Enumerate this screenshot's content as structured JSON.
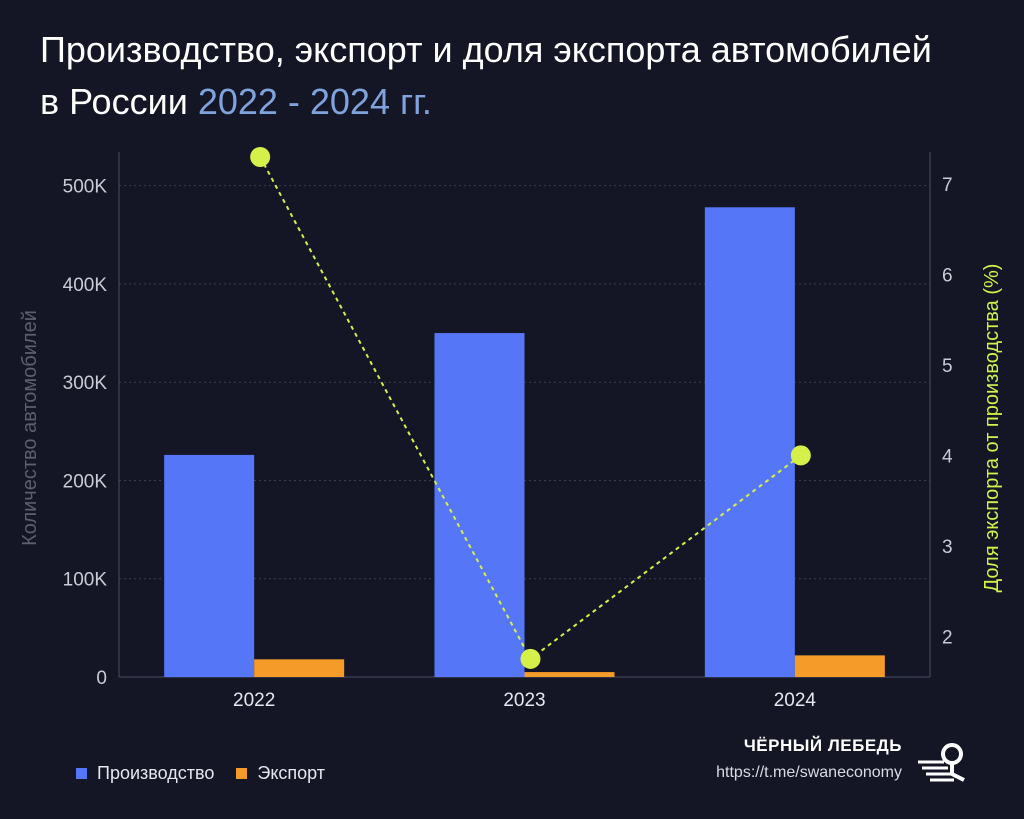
{
  "title": {
    "line1": "Производство, экспорт и доля экспорта автомобилей",
    "line2_prefix": "в России ",
    "line2_accent": "2022 - 2024 гг."
  },
  "legend": {
    "production": "Производство",
    "export": "Экспорт"
  },
  "brand": {
    "name": "ЧЁРНЫЙ ЛЕБЕДЬ",
    "url": "https://t.me/swaneconomy",
    "logo_icon": "swan-logo-icon"
  },
  "colors": {
    "production": "#5576f6",
    "export": "#f59b2a",
    "share": "#d6f04a",
    "accent": "#7fa3dc",
    "axis_label_left": "#5b5f70",
    "axis_label_right": "#d6f04a"
  },
  "chart_data": {
    "type": "bar",
    "categories": [
      "2022",
      "2023",
      "2024"
    ],
    "series": [
      {
        "name": "Производство",
        "values": [
          226000,
          350000,
          478000
        ],
        "axis": "left"
      },
      {
        "name": "Экспорт",
        "values": [
          18000,
          5000,
          22000
        ],
        "axis": "left"
      },
      {
        "name": "",
        "type": "line",
        "values": [
          7.3,
          1.75,
          4.0
        ],
        "axis": "right"
      }
    ],
    "ylabel": "Количество автомобилей",
    "y2label": "Доля экспорта от производства (%)",
    "ylim": [
      0,
      520000
    ],
    "y2lim": [
      1.55,
      7.2
    ],
    "yticks": [
      0,
      100000,
      200000,
      300000,
      400000,
      500000
    ],
    "yticklabels": [
      "0",
      "100K",
      "200K",
      "300K",
      "400K",
      "500K"
    ],
    "y2ticks": [
      2,
      3,
      4,
      5,
      6,
      7
    ],
    "y2ticklabels": [
      "2",
      "3",
      "4",
      "5",
      "6",
      "7"
    ],
    "grid": true,
    "legend_position": "bottom-left"
  }
}
